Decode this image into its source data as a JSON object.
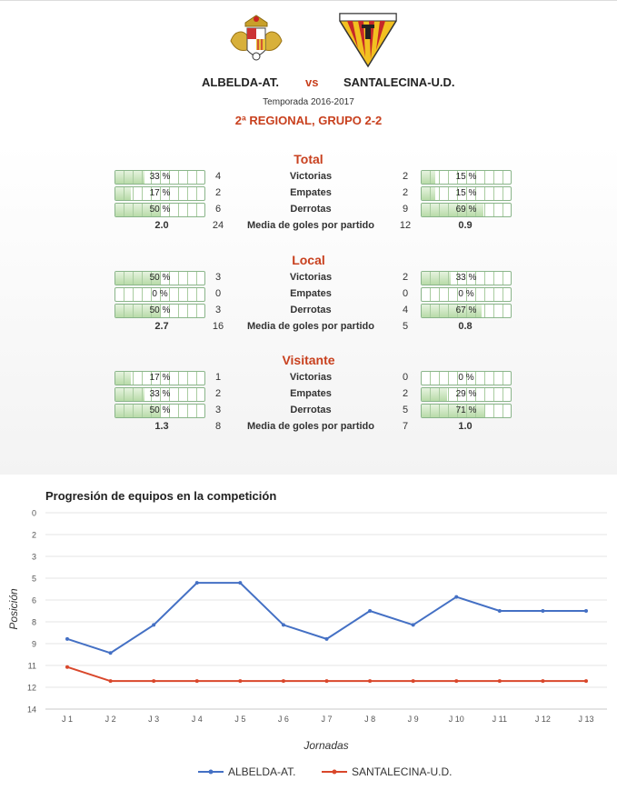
{
  "header": {
    "home_team": "ALBELDA-AT.",
    "vs": "vs",
    "away_team": "SANTALECINA-U.D.",
    "season": "Temporada 2016-2017",
    "league": "2ª REGIONAL, GRUPO 2-2",
    "colors": {
      "accent": "#c8401e"
    }
  },
  "sections": [
    {
      "title": "Total",
      "rows": [
        {
          "label": "Victorias",
          "home_pct": 33,
          "home_pct_text": "33 %",
          "home_count": "4",
          "away_count": "2",
          "away_pct": 15,
          "away_pct_text": "15 %"
        },
        {
          "label": "Empates",
          "home_pct": 17,
          "home_pct_text": "17 %",
          "home_count": "2",
          "away_count": "2",
          "away_pct": 15,
          "away_pct_text": "15 %"
        },
        {
          "label": "Derrotas",
          "home_pct": 50,
          "home_pct_text": "50 %",
          "home_count": "6",
          "away_count": "9",
          "away_pct": 69,
          "away_pct_text": "69 %"
        }
      ],
      "avg": {
        "label": "Media de goles por partido",
        "home_avg": "2.0",
        "home_goals": "24",
        "away_goals": "12",
        "away_avg": "0.9"
      }
    },
    {
      "title": "Local",
      "rows": [
        {
          "label": "Victorias",
          "home_pct": 50,
          "home_pct_text": "50 %",
          "home_count": "3",
          "away_count": "2",
          "away_pct": 33,
          "away_pct_text": "33 %"
        },
        {
          "label": "Empates",
          "home_pct": 0,
          "home_pct_text": "0 %",
          "home_count": "0",
          "away_count": "0",
          "away_pct": 0,
          "away_pct_text": "0 %"
        },
        {
          "label": "Derrotas",
          "home_pct": 50,
          "home_pct_text": "50 %",
          "home_count": "3",
          "away_count": "4",
          "away_pct": 67,
          "away_pct_text": "67 %"
        }
      ],
      "avg": {
        "label": "Media de goles por partido",
        "home_avg": "2.7",
        "home_goals": "16",
        "away_goals": "5",
        "away_avg": "0.8"
      }
    },
    {
      "title": "Visitante",
      "rows": [
        {
          "label": "Victorias",
          "home_pct": 17,
          "home_pct_text": "17 %",
          "home_count": "1",
          "away_count": "0",
          "away_pct": 0,
          "away_pct_text": "0 %"
        },
        {
          "label": "Empates",
          "home_pct": 33,
          "home_pct_text": "33 %",
          "home_count": "2",
          "away_count": "2",
          "away_pct": 29,
          "away_pct_text": "29 %"
        },
        {
          "label": "Derrotas",
          "home_pct": 50,
          "home_pct_text": "50 %",
          "home_count": "3",
          "away_count": "5",
          "away_pct": 71,
          "away_pct_text": "71 %"
        }
      ],
      "avg": {
        "label": "Media de goles por partido",
        "home_avg": "1.3",
        "home_goals": "8",
        "away_goals": "7",
        "away_avg": "1.0"
      }
    }
  ],
  "chart_data": {
    "type": "line",
    "title": "Progresión de equipos en la competición",
    "xlabel": "Jornadas",
    "ylabel": "Posición",
    "categories": [
      "J 1",
      "J 2",
      "J 3",
      "J 4",
      "J 5",
      "J 6",
      "J 7",
      "J 8",
      "J 9",
      "J 10",
      "J 11",
      "J 12",
      "J 13"
    ],
    "y_ticks": [
      "0",
      "2",
      "3",
      "5",
      "6",
      "8",
      "9",
      "11",
      "12",
      "14"
    ],
    "ylim": [
      0,
      14
    ],
    "y_reversed": true,
    "grid": true,
    "legend_position": "bottom",
    "series": [
      {
        "name": "ALBELDA-AT.",
        "color": "#4470c4",
        "values": [
          9,
          10,
          8,
          5,
          5,
          8,
          9,
          7,
          8,
          6,
          7,
          7,
          7
        ]
      },
      {
        "name": "SANTALECINA-U.D.",
        "color": "#d9472b",
        "values": [
          11,
          12,
          12,
          12,
          12,
          12,
          12,
          12,
          12,
          12,
          12,
          12,
          12
        ]
      }
    ]
  }
}
